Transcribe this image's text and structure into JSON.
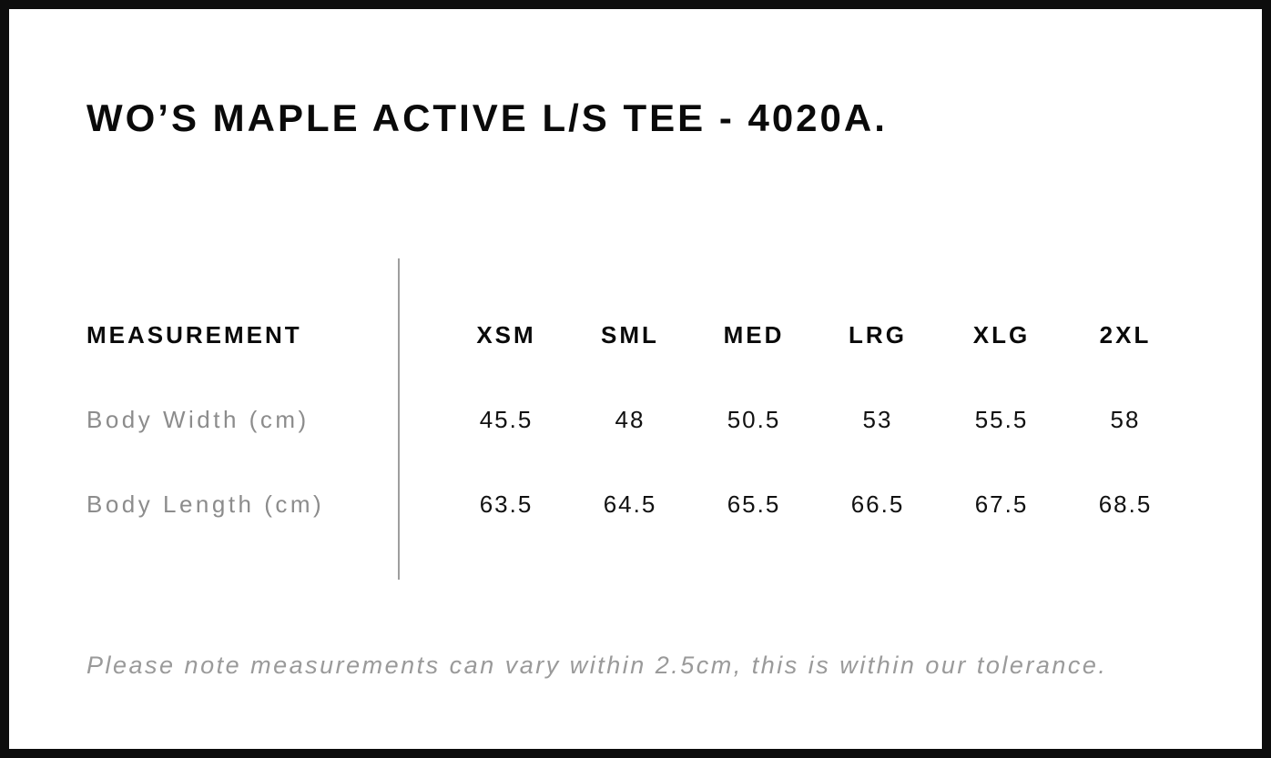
{
  "page": {
    "title": "WO’S MAPLE ACTIVE L/S TEE - 4020A."
  },
  "table": {
    "measurement_header": "MEASUREMENT",
    "size_headers": [
      "XSM",
      "SML",
      "MED",
      "LRG",
      "XLG",
      "2XL"
    ],
    "rows": [
      {
        "label": "Body Width (cm)",
        "values": [
          "45.5",
          "48",
          "50.5",
          "53",
          "55.5",
          "58"
        ]
      },
      {
        "label": "Body Length (cm)",
        "values": [
          "63.5",
          "64.5",
          "65.5",
          "66.5",
          "67.5",
          "68.5"
        ]
      }
    ]
  },
  "footer": {
    "note": "Please note measurements can vary within 2.5cm, this is within our tolerance."
  },
  "colors": {
    "text": "#0a0a0a",
    "muted_label": "#8c8c8c",
    "note_gray": "#9a9a9a",
    "divider": "#9e9e9e",
    "frame": "#0d0d0d",
    "background": "#ffffff"
  },
  "chart_data": {
    "type": "table",
    "title": "WO’S MAPLE ACTIVE L/S TEE - 4020A.",
    "columns": [
      "MEASUREMENT",
      "XSM",
      "SML",
      "MED",
      "LRG",
      "XLG",
      "2XL"
    ],
    "rows": [
      [
        "Body Width (cm)",
        45.5,
        48,
        50.5,
        53,
        55.5,
        58
      ],
      [
        "Body Length (cm)",
        63.5,
        64.5,
        65.5,
        66.5,
        67.5,
        68.5
      ]
    ],
    "note": "Please note measurements can vary within 2.5cm, this is within our tolerance."
  }
}
